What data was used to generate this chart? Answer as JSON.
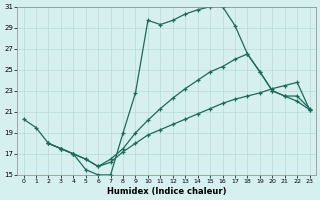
{
  "xlabel": "Humidex (Indice chaleur)",
  "xlim": [
    -0.5,
    23.5
  ],
  "ylim": [
    15,
    31
  ],
  "xticks": [
    0,
    1,
    2,
    3,
    4,
    5,
    6,
    7,
    8,
    9,
    10,
    11,
    12,
    13,
    14,
    15,
    16,
    17,
    18,
    19,
    20,
    21,
    22,
    23
  ],
  "yticks": [
    15,
    17,
    19,
    21,
    23,
    25,
    27,
    29,
    31
  ],
  "background_color": "#d6f0ef",
  "grid_color": "#b8dada",
  "line_color": "#1a6b5a",
  "line1_x": [
    0,
    1,
    2,
    3,
    4,
    5,
    6,
    7,
    8,
    9,
    10,
    11,
    12,
    13,
    14,
    15,
    16,
    17,
    18,
    19,
    20,
    21,
    22,
    23
  ],
  "line1_y": [
    20.3,
    19.5,
    18.0,
    17.5,
    17.0,
    15.5,
    15.0,
    15.0,
    19.0,
    22.8,
    29.7,
    29.3,
    29.7,
    30.3,
    30.7,
    31.0,
    31.0,
    29.2,
    26.5,
    24.8,
    23.0,
    22.5,
    22.0,
    21.2
  ],
  "line2_x": [
    2,
    3,
    4,
    5,
    6,
    7,
    8,
    9,
    10,
    11,
    12,
    13,
    14,
    15,
    16,
    17,
    18,
    19,
    20,
    21,
    22,
    23
  ],
  "line2_y": [
    18.0,
    17.5,
    17.0,
    16.5,
    15.8,
    16.5,
    17.5,
    19.0,
    20.2,
    21.3,
    22.3,
    23.2,
    24.0,
    24.8,
    25.3,
    26.0,
    26.5,
    24.8,
    23.0,
    22.5,
    22.5,
    21.3
  ],
  "line3_x": [
    2,
    3,
    4,
    5,
    6,
    7,
    8,
    9,
    10,
    11,
    12,
    13,
    14,
    15,
    16,
    17,
    18,
    19,
    20,
    21,
    22,
    23
  ],
  "line3_y": [
    18.0,
    17.5,
    17.0,
    16.5,
    15.8,
    16.2,
    17.2,
    18.0,
    18.8,
    19.3,
    19.8,
    20.3,
    20.8,
    21.3,
    21.8,
    22.2,
    22.5,
    22.8,
    23.2,
    23.5,
    23.8,
    21.2
  ]
}
